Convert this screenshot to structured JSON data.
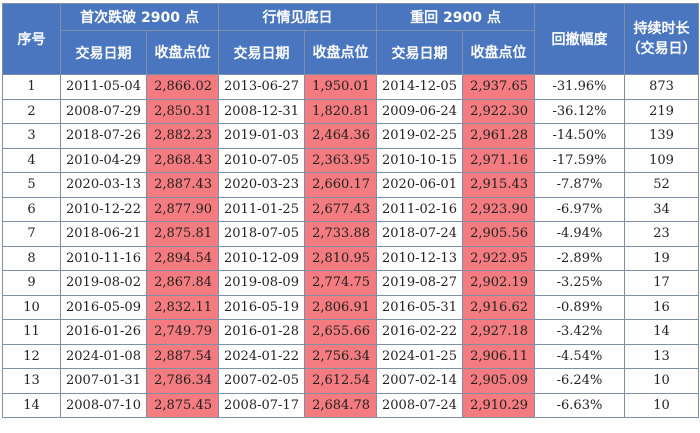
{
  "headers": {
    "seq": "序号",
    "group_first_break": "首次跌破 2900 点",
    "group_bottom": "行情见底日",
    "group_back": "重回 2900 点",
    "drawdown": "回撤幅度",
    "duration_line1": "持续时长",
    "duration_line2": "（交易日）",
    "trade_date": "交易日期",
    "close_point_1": "收盘点位",
    "close_point_2": "收盘点位",
    "close_point_3": "收盘点位"
  },
  "rows": [
    {
      "seq": "1",
      "d1": "2011-05-04",
      "p1": "2,866.02",
      "d2": "2013-06-27",
      "p2": "1,950.01",
      "d3": "2014-12-05",
      "p3": "2,937.65",
      "dd": "-31.96%",
      "dur": "873"
    },
    {
      "seq": "2",
      "d1": "2008-07-29",
      "p1": "2,850.31",
      "d2": "2008-12-31",
      "p2": "1,820.81",
      "d3": "2009-06-24",
      "p3": "2,922.30",
      "dd": "-36.12%",
      "dur": "219"
    },
    {
      "seq": "3",
      "d1": "2018-07-26",
      "p1": "2,882.23",
      "d2": "2019-01-03",
      "p2": "2,464.36",
      "d3": "2019-02-25",
      "p3": "2,961.28",
      "dd": "-14.50%",
      "dur": "139"
    },
    {
      "seq": "4",
      "d1": "2010-04-29",
      "p1": "2,868.43",
      "d2": "2010-07-05",
      "p2": "2,363.95",
      "d3": "2010-10-15",
      "p3": "2,971.16",
      "dd": "-17.59%",
      "dur": "109"
    },
    {
      "seq": "5",
      "d1": "2020-03-13",
      "p1": "2,887.43",
      "d2": "2020-03-23",
      "p2": "2,660.17",
      "d3": "2020-06-01",
      "p3": "2,915.43",
      "dd": "-7.87%",
      "dur": "52"
    },
    {
      "seq": "6",
      "d1": "2010-12-22",
      "p1": "2,877.90",
      "d2": "2011-01-25",
      "p2": "2,677.43",
      "d3": "2011-02-16",
      "p3": "2,923.90",
      "dd": "-6.97%",
      "dur": "34"
    },
    {
      "seq": "7",
      "d1": "2018-06-21",
      "p1": "2,875.81",
      "d2": "2018-07-05",
      "p2": "2,733.88",
      "d3": "2018-07-24",
      "p3": "2,905.56",
      "dd": "-4.94%",
      "dur": "23"
    },
    {
      "seq": "8",
      "d1": "2010-11-16",
      "p1": "2,894.54",
      "d2": "2010-12-09",
      "p2": "2,810.95",
      "d3": "2010-12-13",
      "p3": "2,922.95",
      "dd": "-2.89%",
      "dur": "19"
    },
    {
      "seq": "9",
      "d1": "2019-08-02",
      "p1": "2,867.84",
      "d2": "2019-08-09",
      "p2": "2,774.75",
      "d3": "2019-08-27",
      "p3": "2,902.19",
      "dd": "-3.25%",
      "dur": "17"
    },
    {
      "seq": "10",
      "d1": "2016-05-09",
      "p1": "2,832.11",
      "d2": "2016-05-19",
      "p2": "2,806.91",
      "d3": "2016-05-31",
      "p3": "2,916.62",
      "dd": "-0.89%",
      "dur": "16"
    },
    {
      "seq": "11",
      "d1": "2016-01-26",
      "p1": "2,749.79",
      "d2": "2016-01-28",
      "p2": "2,655.66",
      "d3": "2016-02-22",
      "p3": "2,927.18",
      "dd": "-3.42%",
      "dur": "14"
    },
    {
      "seq": "12",
      "d1": "2024-01-08",
      "p1": "2,887.54",
      "d2": "2024-01-22",
      "p2": "2,756.34",
      "d3": "2024-01-25",
      "p3": "2,906.11",
      "dd": "-4.54%",
      "dur": "13"
    },
    {
      "seq": "13",
      "d1": "2007-01-31",
      "p1": "2,786.34",
      "d2": "2007-02-05",
      "p2": "2,612.54",
      "d3": "2007-02-14",
      "p3": "2,905.09",
      "dd": "-6.24%",
      "dur": "10"
    },
    {
      "seq": "14",
      "d1": "2008-07-10",
      "p1": "2,875.45",
      "d2": "2008-07-17",
      "p2": "2,684.78",
      "d3": "2008-07-24",
      "p3": "2,910.29",
      "dd": "-6.63%",
      "dur": "10"
    }
  ],
  "colors": {
    "header_bg": "#4a76c0",
    "highlight": "#f47b7f",
    "border": "#7f8fa6"
  }
}
